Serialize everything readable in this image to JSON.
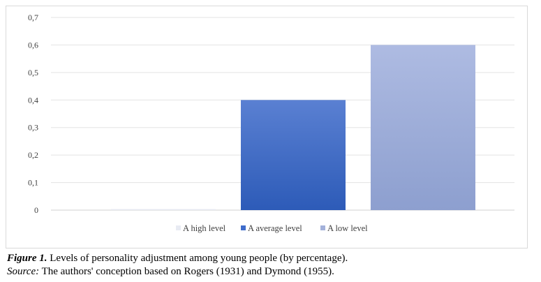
{
  "chart_data": {
    "type": "bar",
    "title": "",
    "xlabel": "",
    "ylabel": "",
    "ylim": [
      0,
      0.7
    ],
    "yticks": [
      "0",
      "0,1",
      "0,2",
      "0,3",
      "0,4",
      "0,5",
      "0,6",
      "0,7"
    ],
    "grid": true,
    "legend_position": "bottom",
    "series": [
      {
        "name": "A high level",
        "value": 0.0,
        "color": "#e8ebf3"
      },
      {
        "name": "A average level",
        "value": 0.4,
        "color": "#3f6ccb"
      },
      {
        "name": "A low level",
        "value": 0.6,
        "color": "#a3b1da"
      }
    ]
  },
  "caption": {
    "figure_label": "Figure 1.",
    "figure_text": " Levels of personality adjustment among young people (by percentage).",
    "source_label": "Source:",
    "source_text": " The authors' conception based on Rogers (1931) and Dymond (1955)."
  }
}
